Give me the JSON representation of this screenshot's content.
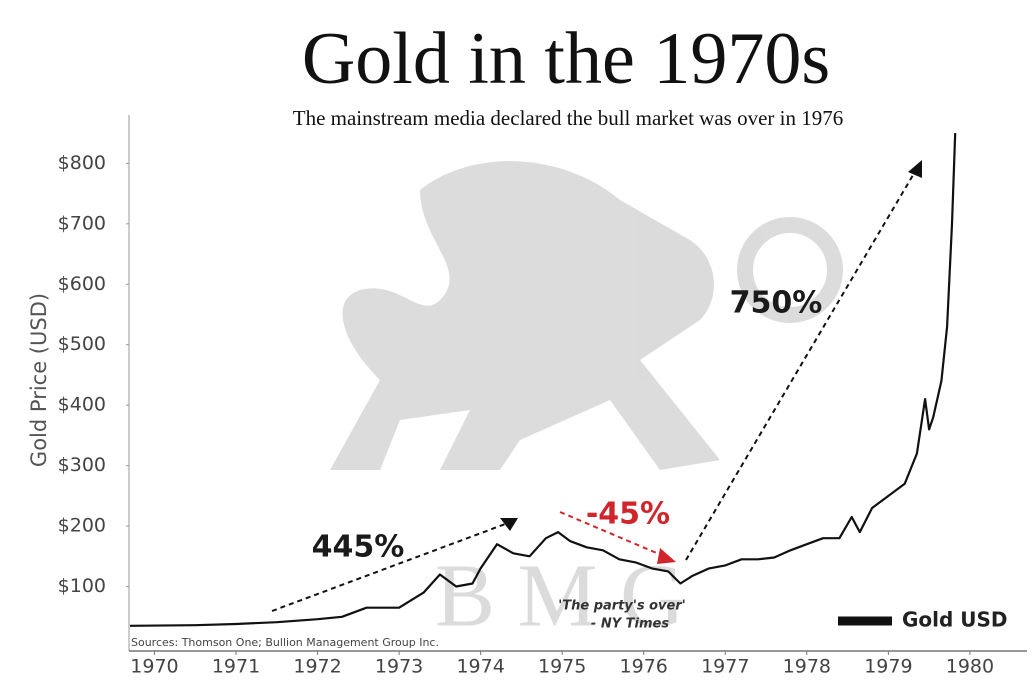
{
  "chart_data": {
    "type": "line",
    "title": "Gold in the 1970s",
    "subtitle": "The mainstream media declared the bull market was over in 1976",
    "y_label": "Gold Price (USD)",
    "source": "Sources: Thomson One; Bullion Management Group Inc.",
    "watermark": "B M G",
    "annotations": [
      "445%",
      "-45%",
      "750%",
      "'The party's over'",
      "- NY Times"
    ],
    "xlim": [
      1969.7,
      1980.7
    ],
    "xticks": [
      1970,
      1971,
      1972,
      1973,
      1974,
      1975,
      1976,
      1977,
      1978,
      1979,
      1980
    ],
    "ylim": [
      0,
      880
    ],
    "yticks": [
      {
        "value": 100,
        "label": "$100"
      },
      {
        "value": 200,
        "label": "$200"
      },
      {
        "value": 300,
        "label": "$300"
      },
      {
        "value": 400,
        "label": "$400"
      },
      {
        "value": 500,
        "label": "$500"
      },
      {
        "value": 600,
        "label": "$600"
      },
      {
        "value": 700,
        "label": "$700"
      },
      {
        "value": 800,
        "label": "$800"
      }
    ],
    "grid": false,
    "legend": "lower right",
    "series": [
      {
        "name": "Gold USD",
        "color": "#111111",
        "x": [
          1969.7,
          1970.5,
          1971.0,
          1971.5,
          1972.0,
          1972.3,
          1972.6,
          1973.0,
          1973.3,
          1973.5,
          1973.7,
          1973.9,
          1974.0,
          1974.2,
          1974.4,
          1974.6,
          1974.8,
          1974.95,
          1975.1,
          1975.3,
          1975.5,
          1975.7,
          1975.9,
          1976.1,
          1976.3,
          1976.45,
          1976.6,
          1976.8,
          1977.0,
          1977.2,
          1977.4,
          1977.6,
          1977.8,
          1978.0,
          1978.2,
          1978.4,
          1978.55,
          1978.65,
          1978.8,
          1979.0,
          1979.2,
          1979.35,
          1979.45,
          1979.5,
          1979.55,
          1979.65,
          1979.72,
          1979.78,
          1979.82
        ],
        "values": [
          35,
          36,
          38,
          41,
          46,
          50,
          65,
          65,
          90,
          120,
          100,
          105,
          130,
          170,
          155,
          150,
          180,
          190,
          175,
          165,
          160,
          145,
          140,
          130,
          125,
          105,
          118,
          130,
          135,
          145,
          145,
          148,
          160,
          170,
          180,
          180,
          215,
          190,
          230,
          250,
          270,
          320,
          410,
          360,
          380,
          440,
          530,
          700,
          850
        ]
      }
    ]
  }
}
